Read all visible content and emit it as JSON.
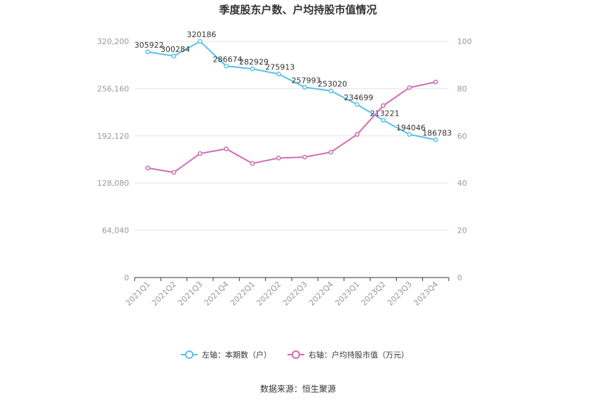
{
  "chart_data": {
    "type": "line",
    "title": "季度股东户数、户均持股市值情况",
    "categories": [
      "2021Q1",
      "2021Q2",
      "2021Q3",
      "2021Q4",
      "2022Q1",
      "2022Q2",
      "2022Q3",
      "2022Q4",
      "2023Q1",
      "2023Q2",
      "2023Q3",
      "2023Q4"
    ],
    "left_axis": {
      "min": 0,
      "max": 320200,
      "ticks": [
        "0",
        "64,040",
        "128,080",
        "192,120",
        "256,160",
        "320,200"
      ]
    },
    "right_axis": {
      "min": 0,
      "max": 100,
      "ticks": [
        "0",
        "20",
        "40",
        "60",
        "80",
        "100"
      ]
    },
    "series": [
      {
        "name": "左轴：本期数（户）",
        "axis": "left",
        "color": "#5bc0eb",
        "values": [
          305922,
          300284,
          320186,
          286674,
          282929,
          275913,
          257993,
          253020,
          234699,
          213221,
          194046,
          186783
        ],
        "labels": [
          "305922",
          "300284",
          "320186",
          "286674",
          "282929",
          "275913",
          "257993",
          "253020",
          "234699",
          "213221",
          "194046",
          "186783"
        ]
      },
      {
        "name": "右轴：户均持股市值（万元）",
        "axis": "right",
        "color": "#d36bb2",
        "values": [
          46.4,
          44.5,
          52.5,
          54.5,
          48.3,
          50.6,
          51.0,
          53.1,
          60.6,
          72.8,
          80.4,
          82.8
        ]
      }
    ],
    "grid": true,
    "legend_position": "bottom"
  },
  "source": "数据来源：恒生聚源"
}
